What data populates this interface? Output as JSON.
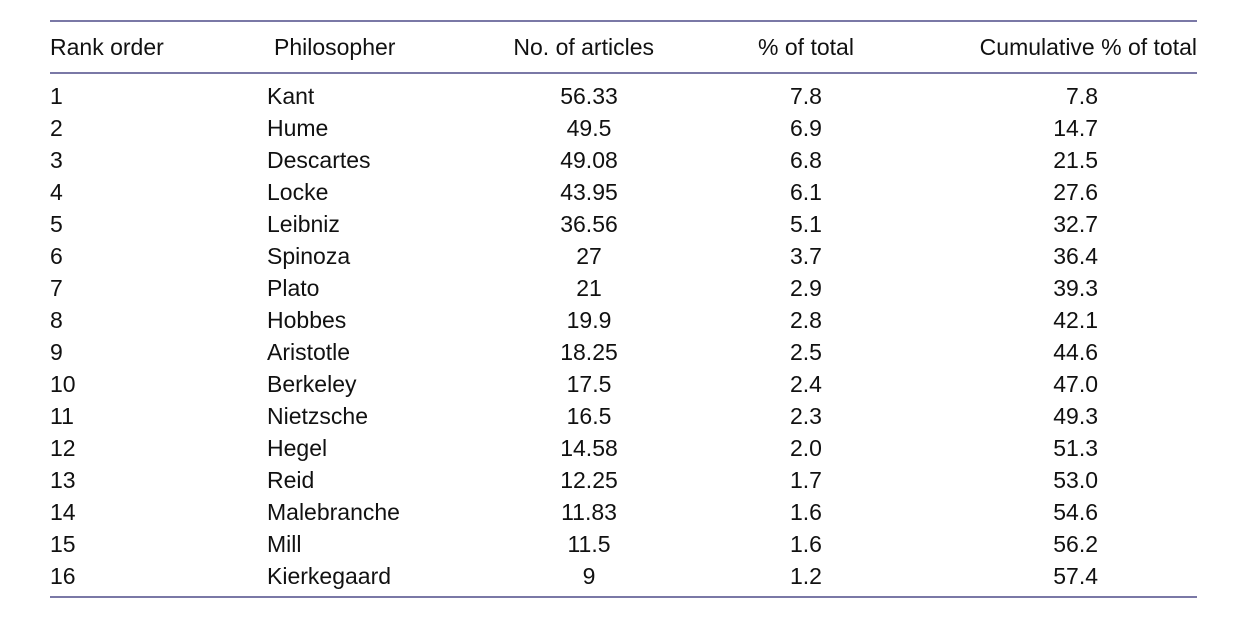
{
  "table": {
    "headers": {
      "rank": "Rank order",
      "philosopher": "Philosopher",
      "articles": "No. of articles",
      "percent": "% of total",
      "cumulative": "Cumulative % of total"
    },
    "rows": [
      {
        "rank": "1",
        "philosopher": "Kant",
        "articles": "56.33",
        "percent": "7.8",
        "cumulative": "7.8"
      },
      {
        "rank": "2",
        "philosopher": "Hume",
        "articles": "49.5",
        "percent": "6.9",
        "cumulative": "14.7"
      },
      {
        "rank": "3",
        "philosopher": "Descartes",
        "articles": "49.08",
        "percent": "6.8",
        "cumulative": "21.5"
      },
      {
        "rank": "4",
        "philosopher": "Locke",
        "articles": "43.95",
        "percent": "6.1",
        "cumulative": "27.6"
      },
      {
        "rank": "5",
        "philosopher": "Leibniz",
        "articles": "36.56",
        "percent": "5.1",
        "cumulative": "32.7"
      },
      {
        "rank": "6",
        "philosopher": "Spinoza",
        "articles": "27",
        "percent": "3.7",
        "cumulative": "36.4"
      },
      {
        "rank": "7",
        "philosopher": "Plato",
        "articles": "21",
        "percent": "2.9",
        "cumulative": "39.3"
      },
      {
        "rank": "8",
        "philosopher": "Hobbes",
        "articles": "19.9",
        "percent": "2.8",
        "cumulative": "42.1"
      },
      {
        "rank": "9",
        "philosopher": "Aristotle",
        "articles": "18.25",
        "percent": "2.5",
        "cumulative": "44.6"
      },
      {
        "rank": "10",
        "philosopher": "Berkeley",
        "articles": "17.5",
        "percent": "2.4",
        "cumulative": "47.0"
      },
      {
        "rank": "11",
        "philosopher": "Nietzsche",
        "articles": "16.5",
        "percent": "2.3",
        "cumulative": "49.3"
      },
      {
        "rank": "12",
        "philosopher": "Hegel",
        "articles": "14.58",
        "percent": "2.0",
        "cumulative": "51.3"
      },
      {
        "rank": "13",
        "philosopher": "Reid",
        "articles": "12.25",
        "percent": "1.7",
        "cumulative": "53.0"
      },
      {
        "rank": "14",
        "philosopher": "Malebranche",
        "articles": "11.83",
        "percent": "1.6",
        "cumulative": "54.6"
      },
      {
        "rank": "15",
        "philosopher": "Mill",
        "articles": "11.5",
        "percent": "1.6",
        "cumulative": "56.2"
      },
      {
        "rank": "16",
        "philosopher": "Kierkegaard",
        "articles": "9",
        "percent": "1.2",
        "cumulative": "57.4"
      }
    ]
  },
  "colors": {
    "rule": "#7a78a6",
    "text": "#111111"
  }
}
